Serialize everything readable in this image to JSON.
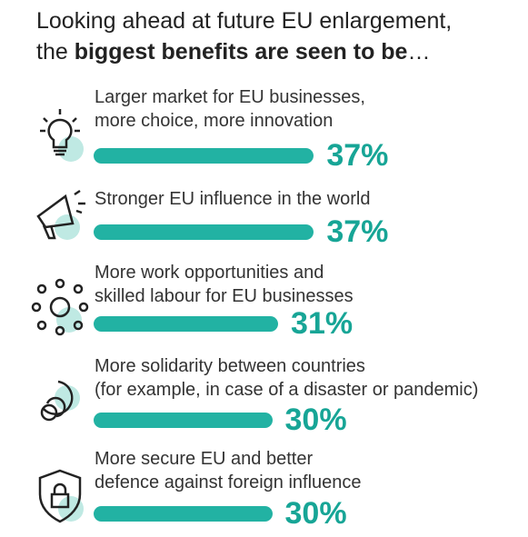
{
  "chart_data": {
    "type": "bar",
    "title": [
      "Looking ahead at future EU enlargement,",
      "the ",
      "biggest benefits are seen to be",
      "…"
    ],
    "categories": [
      [
        "Larger market for EU businesses,",
        "more choice, more innovation"
      ],
      [
        "Stronger EU influence in the world"
      ],
      [
        "More work opportunities and",
        "skilled labour for EU businesses"
      ],
      [
        "More solidarity between countries",
        "(for example, in case of a disaster or pandemic)"
      ],
      [
        "More secure EU and better",
        "defence against foreign influence"
      ]
    ],
    "values": [
      37,
      37,
      31,
      30,
      30
    ],
    "value_labels": [
      "37%",
      "37%",
      "31%",
      "30%",
      "30%"
    ],
    "color": "#22b2a3",
    "label_color": "#17a596"
  }
}
